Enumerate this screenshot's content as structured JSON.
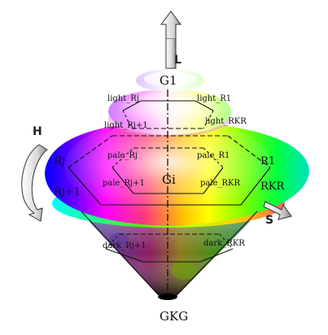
{
  "diagram": {
    "axis_arrows": {
      "lightness": "L",
      "hue": "H",
      "saturation": "S"
    },
    "labels": {
      "top_apex": "G1",
      "bottom_apex": "GKG",
      "center": "Gi",
      "light_left_top": "light_Rj",
      "light_right_top": "light_R1",
      "light_left_second": "light_Rj+1",
      "light_right_second": "light_RKR",
      "pale_left_top": "pale_Rj",
      "pale_right_top": "pale_R1",
      "pale_left_second": "pale_Rj+1",
      "pale_right_second": "pale_RKR",
      "outer_left_top": "Rj",
      "outer_left_second": "Rj+1",
      "outer_right_top": "R1",
      "outer_right_second": "RKR",
      "dark_left": "dark_Rj+1",
      "dark_right": "dark_RKR"
    },
    "colors": {
      "outer_disc": [
        "#ff0000",
        "#ffff00",
        "#00ff00",
        "#00ffff",
        "#0000ff",
        "#ff00ff"
      ],
      "light_disc": [
        "#ffb3b3",
        "#fff2b3",
        "#c8ffc8",
        "#c8ffff",
        "#c8c8ff",
        "#ffc8ff"
      ],
      "dark_cone": [
        "#800000",
        "#808000",
        "#008000",
        "#008080",
        "#000080",
        "#800080"
      ],
      "outline": "#111111"
    }
  }
}
